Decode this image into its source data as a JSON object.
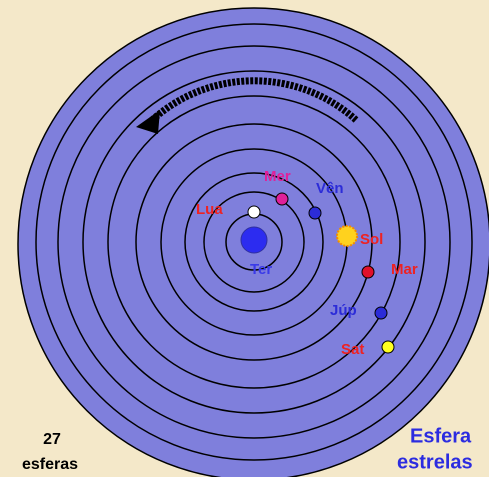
{
  "bodies": [
    {
      "label": "Ter"
    },
    {
      "label": "Lua"
    },
    {
      "label": "Mer"
    },
    {
      "label": "Vên"
    },
    {
      "label": "Sol"
    },
    {
      "label": "Mar"
    },
    {
      "label": "Júp"
    },
    {
      "label": "Sat"
    }
  ],
  "footer": {
    "count": "27",
    "count_label": "esferas",
    "sphere_line1": "Esfera",
    "sphere_line2": "estrelas"
  }
}
